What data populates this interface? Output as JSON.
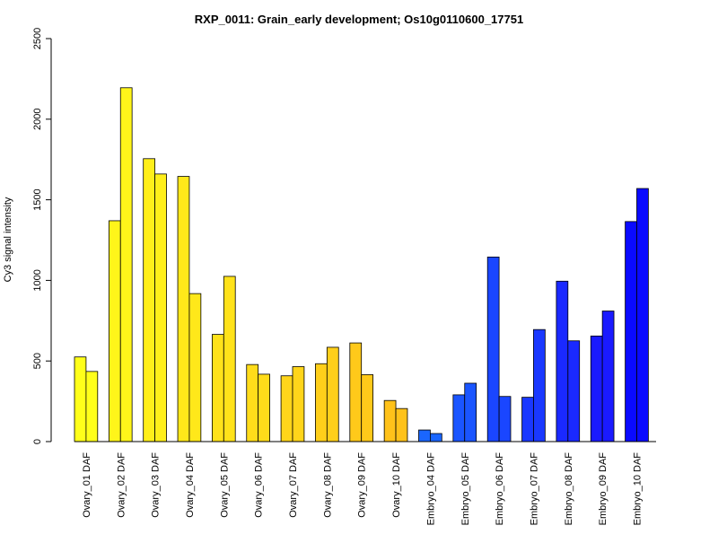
{
  "chart_data": {
    "type": "bar",
    "title": "RXP_0011: Grain_early development; Os10g0110600_17751",
    "xlabel": "",
    "ylabel": "Cy3 signal intensity",
    "ylim": [
      0,
      2500
    ],
    "yticks": [
      0,
      500,
      1000,
      1500,
      2000,
      2500
    ],
    "grid": false,
    "categories": [
      "Ovary_01 DAF",
      "Ovary_02 DAF",
      "Ovary_03 DAF",
      "Ovary_04 DAF",
      "Ovary_05 DAF",
      "Ovary_06 DAF",
      "Ovary_07 DAF",
      "Ovary_08 DAF",
      "Ovary_09 DAF",
      "Ovary_10 DAF",
      "Embryo_04 DAF",
      "Embryo_05 DAF",
      "Embryo_06 DAF",
      "Embryo_07 DAF",
      "Embryo_08 DAF",
      "Embryo_09 DAF",
      "Embryo_10 DAF"
    ],
    "colors": [
      "#ffff1a",
      "#fff51a",
      "#ffef1a",
      "#ffe81a",
      "#ffe21a",
      "#ffdc1a",
      "#ffd51a",
      "#ffcf1a",
      "#ffc91a",
      "#ffc21a",
      "#1a66ff",
      "#1a55ff",
      "#1a46ff",
      "#1a38ff",
      "#1a29ff",
      "#1a1aff",
      "#0a0aff"
    ],
    "series": [
      {
        "values": [
          525,
          1370,
          1755,
          1645,
          665,
          478,
          408,
          483,
          612,
          255,
          72,
          290,
          1145,
          275,
          995,
          655,
          1365
        ]
      },
      {
        "values": [
          435,
          2195,
          1660,
          918,
          1025,
          418,
          465,
          585,
          415,
          205,
          50,
          362,
          280,
          695,
          625,
          810,
          1570
        ]
      }
    ]
  }
}
